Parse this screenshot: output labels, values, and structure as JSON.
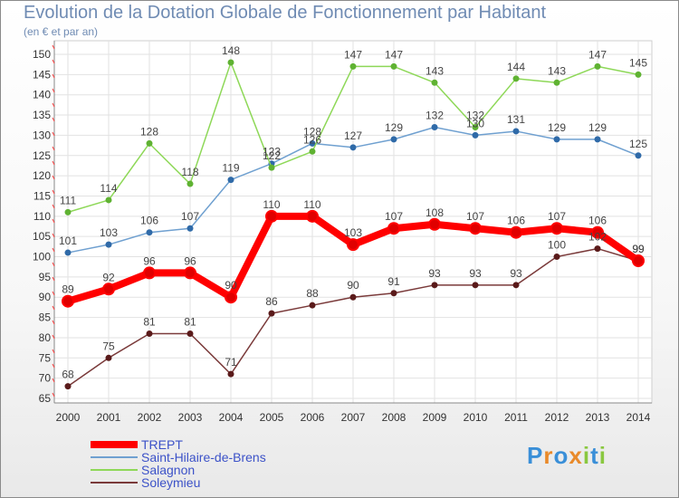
{
  "chart_data": {
    "type": "line",
    "title": "Evolution de la Dotation Globale de Fonctionnement par Habitant",
    "subtitle": "(en € et par an)",
    "categories": [
      "2000",
      "2001",
      "2002",
      "2003",
      "2004",
      "2005",
      "2006",
      "2007",
      "2008",
      "2009",
      "2010",
      "2011",
      "2012",
      "2013",
      "2014"
    ],
    "ylim": [
      65,
      150
    ],
    "yticks": [
      65,
      70,
      75,
      80,
      85,
      90,
      95,
      100,
      105,
      110,
      115,
      120,
      125,
      130,
      135,
      140,
      145,
      150
    ],
    "grid": true,
    "legend_position": "bottom-left",
    "series": [
      {
        "name": "TREPT",
        "color": "#ff0000",
        "values": [
          89,
          92,
          96,
          96,
          90,
          110,
          110,
          103,
          107,
          108,
          107,
          106,
          107,
          106,
          99
        ]
      },
      {
        "name": "Saint-Hilaire-de-Brens",
        "color": "#6fa0d0",
        "values": [
          101,
          103,
          106,
          107,
          119,
          123,
          128,
          127,
          129,
          132,
          130,
          131,
          129,
          129,
          125
        ]
      },
      {
        "name": "Salagnon",
        "color": "#8ed858",
        "values": [
          111,
          114,
          128,
          118,
          148,
          122,
          126,
          147,
          147,
          143,
          132,
          144,
          143,
          147,
          145
        ]
      },
      {
        "name": "Soleymieu",
        "color": "#7a3a3a",
        "values": [
          68,
          75,
          81,
          81,
          71,
          86,
          88,
          90,
          91,
          93,
          93,
          93,
          100,
          102,
          99
        ]
      }
    ]
  },
  "logo": {
    "text": "Proxiti",
    "letters": [
      "P",
      "r",
      "o",
      "x",
      "i",
      "t",
      "i"
    ],
    "colors": [
      "#3a8fd8",
      "#e98a2a",
      "#3a8fd8",
      "#e98a2a",
      "#8ac840",
      "#3a8fd8",
      "#8ac840"
    ]
  }
}
